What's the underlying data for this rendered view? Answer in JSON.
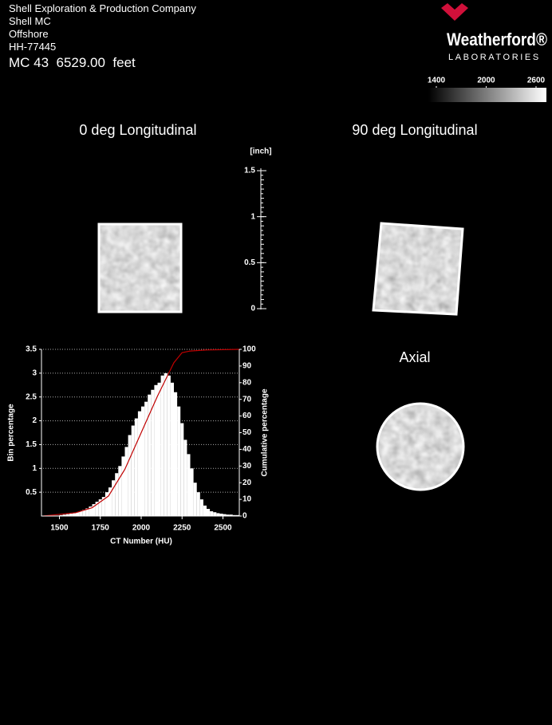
{
  "header": {
    "lines": [
      "Shell Exploration & Production Company",
      "Shell MC",
      "Offshore",
      "HH-77445"
    ],
    "depth": "MC 43  6529.00  feet"
  },
  "logo": {
    "name": "Weatherford®",
    "subtitle": "LABORATORIES"
  },
  "colorbar": {
    "ticks": [
      1400,
      2000,
      2600
    ]
  },
  "panels": [
    "0 deg Longitudinal",
    "90 deg Longitudinal",
    "Axial"
  ],
  "scale_bar": {
    "unit": "[inch]",
    "ticks": [
      0,
      0.5,
      1,
      1.5
    ]
  },
  "chart_data": {
    "type": "histogram",
    "xlabel": "CT Number (HU)",
    "ylabel": "Bin percentage",
    "y2label": "Cumulative percentage",
    "bins": [
      1400,
      1420,
      1440,
      1460,
      1480,
      1500,
      1520,
      1540,
      1560,
      1580,
      1600,
      1620,
      1640,
      1660,
      1680,
      1700,
      1720,
      1740,
      1760,
      1780,
      1800,
      1820,
      1840,
      1860,
      1880,
      1900,
      1920,
      1940,
      1960,
      1980,
      2000,
      2020,
      2040,
      2060,
      2080,
      2100,
      2120,
      2140,
      2160,
      2180,
      2200,
      2220,
      2240,
      2260,
      2280,
      2300,
      2320,
      2340,
      2360,
      2380,
      2400,
      2420,
      2440,
      2460,
      2480,
      2500,
      2520,
      2540,
      2560,
      2580,
      2600
    ],
    "values": [
      0,
      0,
      0,
      0.01,
      0.01,
      0.02,
      0.03,
      0.04,
      0.05,
      0.06,
      0.08,
      0.1,
      0.13,
      0.16,
      0.2,
      0.25,
      0.3,
      0.35,
      0.4,
      0.5,
      0.6,
      0.75,
      0.9,
      1.05,
      1.25,
      1.45,
      1.7,
      1.9,
      2.05,
      2.2,
      2.3,
      2.4,
      2.55,
      2.65,
      2.75,
      2.8,
      2.95,
      3.0,
      2.95,
      2.8,
      2.6,
      2.3,
      1.95,
      1.6,
      1.3,
      1.0,
      0.7,
      0.5,
      0.35,
      0.22,
      0.15,
      0.1,
      0.08,
      0.06,
      0.05,
      0.04,
      0.03,
      0.03,
      0.02,
      0.02
    ],
    "color": "#ffffff",
    "cumulative": {
      "x": [
        1400,
        1600,
        1700,
        1800,
        1900,
        2000,
        2100,
        2150,
        2200,
        2250,
        2300,
        2400,
        2600
      ],
      "values": [
        0,
        2,
        5,
        12,
        28,
        50,
        72,
        82,
        92,
        98,
        99,
        99.6,
        100
      ],
      "color": "#c00000",
      "axis": "y2"
    },
    "xlim": [
      1400,
      2600
    ],
    "xticks": [
      1500,
      1750,
      2000,
      2250,
      2500
    ],
    "ylim": [
      0,
      3.5
    ],
    "yticks": [
      0.5,
      1,
      1.5,
      2,
      2.5,
      3,
      3.5
    ],
    "y2lim": [
      0,
      100
    ],
    "y2ticks": [
      0,
      10,
      20,
      30,
      40,
      50,
      60,
      70,
      80,
      90,
      100
    ],
    "grid": true
  }
}
